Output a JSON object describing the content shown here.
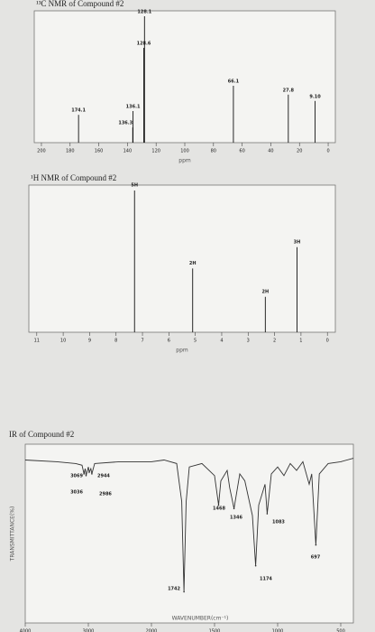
{
  "chart_data": [
    {
      "type": "stem",
      "title": "¹³C NMR of Compound #2",
      "x": [
        174.1,
        136.1,
        136.3,
        128.6,
        128.1,
        66.1,
        27.8,
        9.1
      ],
      "x_labels": [
        "174.1",
        "136.1",
        "136.3",
        "128.6",
        "128.1",
        "66.1",
        "27.8",
        "9.10"
      ],
      "values": [
        22,
        25,
        12,
        75,
        100,
        45,
        38,
        33
      ],
      "xlim": [
        205,
        -5
      ],
      "ylim": [
        0,
        100
      ],
      "xticks": [
        200,
        180,
        160,
        140,
        120,
        100,
        80,
        60,
        40,
        20,
        0
      ],
      "xlabel": "ppm"
    },
    {
      "type": "stem",
      "title": "¹H NMR of Compound #2",
      "x": [
        7.3,
        5.1,
        2.35,
        1.15
      ],
      "values": [
        100,
        45,
        25,
        60
      ],
      "integrations": [
        "5H",
        "2H",
        "2H",
        "3H"
      ],
      "xlim": [
        11.3,
        -0.3
      ],
      "ylim": [
        0,
        100
      ],
      "xticks": [
        11,
        10,
        9,
        8,
        7,
        6,
        5,
        4,
        3,
        2,
        1,
        0
      ],
      "xlabel": "ppm"
    },
    {
      "type": "line",
      "title": "IR of Compound #2",
      "color": "#333",
      "x": [
        4000,
        3500,
        3200,
        3100,
        3069,
        3050,
        3036,
        3000,
        2986,
        2960,
        2944,
        2900,
        2500,
        2000,
        1900,
        1800,
        1760,
        1742,
        1725,
        1700,
        1600,
        1500,
        1468,
        1450,
        1400,
        1380,
        1346,
        1300,
        1260,
        1200,
        1174,
        1150,
        1100,
        1083,
        1050,
        1000,
        950,
        900,
        850,
        800,
        750,
        730,
        697,
        670,
        600,
        500,
        400
      ],
      "values": [
        94,
        93,
        92,
        91,
        86,
        89,
        85,
        90,
        87,
        89,
        86,
        92,
        93,
        93,
        94,
        92,
        70,
        18,
        70,
        90,
        92,
        85,
        68,
        82,
        88,
        78,
        66,
        86,
        82,
        62,
        33,
        68,
        80,
        63,
        86,
        90,
        85,
        92,
        88,
        93,
        80,
        86,
        45,
        86,
        92,
        93,
        95
      ],
      "peaks": {
        "x": [
          3069,
          3036,
          2944,
          2986,
          1742,
          1468,
          1346,
          1174,
          1083,
          697
        ],
        "values": [
          86,
          85,
          86,
          87,
          18,
          68,
          66,
          33,
          63,
          45
        ]
      },
      "xlim": [
        4000,
        400
      ],
      "xscale": "piecewise",
      "ylim": [
        0,
        100
      ],
      "xticks": [
        4000,
        3000,
        2000,
        1500,
        1000,
        500
      ],
      "xlabel": "WAVENUMBER(cm⁻¹)",
      "ylabel": "TRANSMITTANCE(%)"
    }
  ]
}
